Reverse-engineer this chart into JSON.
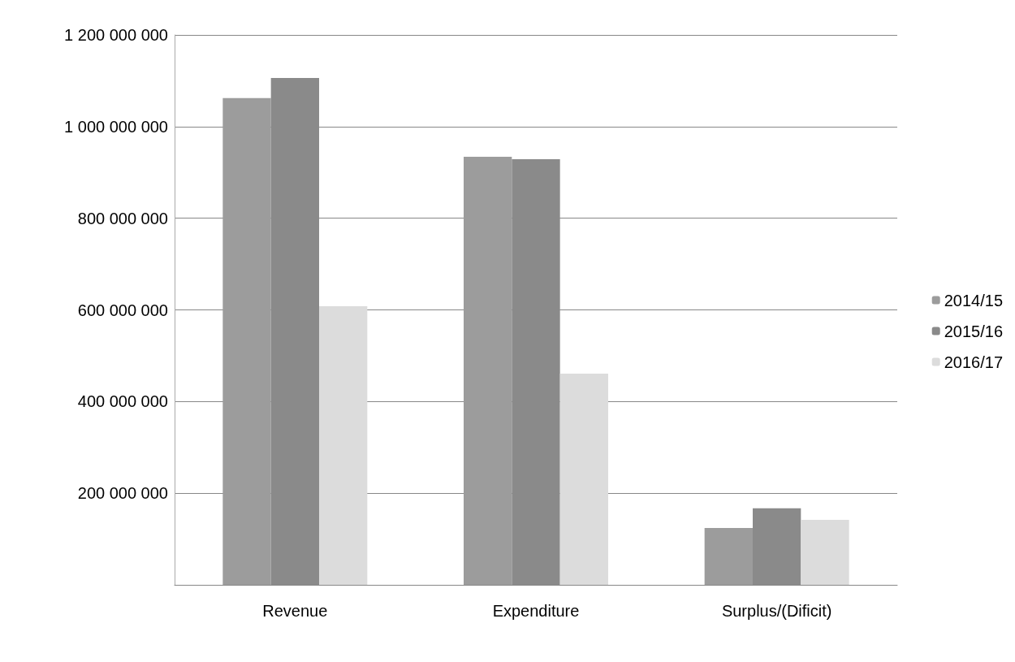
{
  "chart_data": {
    "type": "bar",
    "categories": [
      "Revenue",
      "Expenditure",
      "Surplus/(Dificit)"
    ],
    "series": [
      {
        "name": "2014/15",
        "color": "#9c9c9c",
        "values": [
          1062000000,
          934000000,
          124000000
        ]
      },
      {
        "name": "2015/16",
        "color": "#8a8a8a",
        "values": [
          1106000000,
          929000000,
          167000000
        ]
      },
      {
        "name": "2016/17",
        "color": "#dcdcdc",
        "values": [
          608000000,
          461000000,
          142000000
        ]
      }
    ],
    "ylim": [
      0,
      1200000000
    ],
    "yticks": [
      {
        "value": 0,
        "label": null
      },
      200000000,
      400000000,
      600000000,
      800000000,
      1000000000,
      1200000000
    ],
    "grid": "y",
    "legend": "right"
  }
}
